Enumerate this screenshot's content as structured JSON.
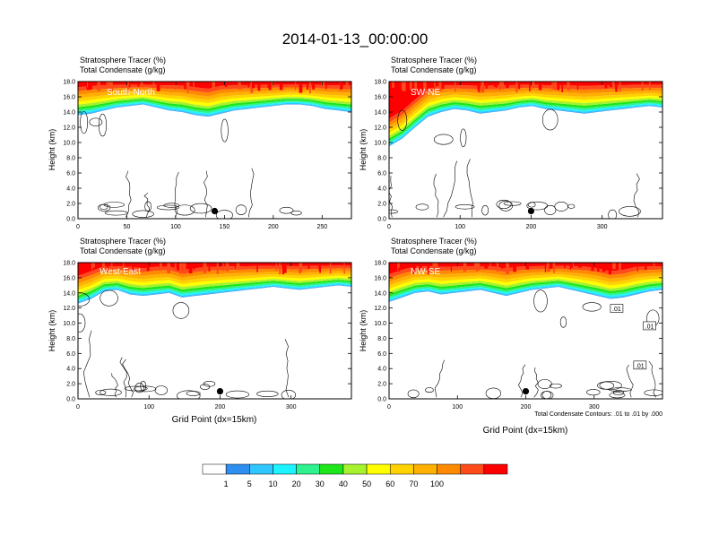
{
  "figure": {
    "title": "2014-01-13_00:00:00",
    "footnote": "Total Condensate Contours: .01 to .01 by .000"
  },
  "colors": {
    "levels": [
      "#ffffff",
      "#2f8ff0",
      "#2fc6ff",
      "#1cf4ff",
      "#2ef28e",
      "#1de61a",
      "#a6f22e",
      "#ffff00",
      "#ffd200",
      "#ffb000",
      "#ff8a00",
      "#ff4a1a",
      "#ff0000"
    ]
  },
  "chart_data": [
    {
      "type": "contour",
      "panel_label": "South-North",
      "header": [
        "Stratosphere Tracer   (%)",
        "Total Condensate   (g/kg)"
      ],
      "ylabel": "Height (km)",
      "xlabel": "",
      "ylim": [
        0,
        18
      ],
      "yticks": [
        "0.0",
        "2.0",
        "4.0",
        "6.0",
        "8.0",
        "10.0",
        "12.0",
        "14.0",
        "16.0",
        "18.0"
      ],
      "xlim": [
        0,
        280
      ],
      "xticks": [
        0,
        50,
        100,
        150,
        200,
        250
      ],
      "tracer_top_km": 18,
      "tracer_base_km": [
        13.6,
        13.8,
        14.2,
        14.6,
        14.8,
        15.0,
        14.6,
        14.2,
        14.0,
        13.6,
        13.4,
        13.8,
        14.2,
        14.4,
        14.6,
        14.8,
        15.0,
        15.0,
        14.8,
        14.4,
        14.2,
        14.0
      ],
      "marker": {
        "x": 140,
        "y": 1.0
      },
      "contour_labels": []
    },
    {
      "type": "contour",
      "panel_label": "SW-NE",
      "header": [
        "Stratosphere Tracer   (%)",
        "Total Condensate   (g/kg)"
      ],
      "ylabel": "Height (km)",
      "xlabel": "",
      "ylim": [
        0,
        18
      ],
      "yticks": [
        "0.0",
        "2.0",
        "4.0",
        "6.0",
        "8.0",
        "10.0",
        "12.0",
        "14.0",
        "16.0",
        "18.0"
      ],
      "xlim": [
        0,
        385
      ],
      "xticks": [
        0,
        100,
        200,
        300
      ],
      "tracer_top_km": 18,
      "tracer_base_km": [
        9.5,
        10.5,
        12.0,
        13.4,
        14.0,
        14.4,
        14.2,
        13.8,
        14.0,
        14.2,
        14.6,
        14.8,
        14.4,
        14.2,
        14.0,
        13.8,
        14.0,
        14.2,
        14.4,
        14.6,
        14.8,
        14.6
      ],
      "marker": {
        "x": 200,
        "y": 1.0
      },
      "contour_labels": []
    },
    {
      "type": "contour",
      "panel_label": "West-East",
      "header": [
        "Stratosphere Tracer   (%)",
        "Total Condensate   (g/kg)"
      ],
      "ylabel": "Height (km)",
      "xlabel": "Grid Point  (dx=15km)",
      "ylim": [
        0,
        18
      ],
      "yticks": [
        "0.0",
        "2.0",
        "4.0",
        "6.0",
        "8.0",
        "10.0",
        "12.0",
        "14.0",
        "16.0",
        "18.0"
      ],
      "xlim": [
        0,
        385
      ],
      "xticks": [
        0,
        100,
        200,
        300
      ],
      "tracer_top_km": 18,
      "tracer_base_km": [
        12.6,
        13.2,
        14.2,
        14.4,
        13.8,
        13.6,
        13.8,
        14.0,
        13.4,
        13.6,
        13.8,
        14.0,
        14.2,
        14.4,
        14.6,
        14.8,
        14.6,
        14.4,
        14.6,
        14.8,
        15.0,
        14.8
      ],
      "marker": {
        "x": 200,
        "y": 1.0
      },
      "contour_labels": []
    },
    {
      "type": "contour",
      "panel_label": "NW-SE",
      "header": [
        "Stratosphere Tracer   (%)",
        "Total Condensate   (g/kg)"
      ],
      "ylabel": "Height (km)",
      "xlabel": "Grid Point  (dx=15km)",
      "ylim": [
        0,
        18
      ],
      "yticks": [
        "0.0",
        "2.0",
        "4.0",
        "6.0",
        "8.0",
        "10.0",
        "12.0",
        "14.0",
        "16.0",
        "18.0"
      ],
      "xlim": [
        0,
        400
      ],
      "xticks": [
        0,
        100,
        200,
        300
      ],
      "tracer_top_km": 18,
      "tracer_base_km": [
        12.8,
        13.4,
        14.0,
        14.2,
        13.8,
        14.0,
        14.2,
        14.4,
        14.0,
        13.6,
        14.0,
        14.4,
        14.6,
        14.8,
        14.4,
        14.0,
        13.6,
        13.2,
        13.4,
        13.8,
        14.2,
        14.4
      ],
      "marker": {
        "x": 200,
        "y": 1.0
      },
      "contour_labels": [
        {
          "text": ".01",
          "x": 333,
          "y": 11.9
        },
        {
          "text": ".01",
          "x": 381,
          "y": 9.6
        },
        {
          "text": ".01",
          "x": 367,
          "y": 4.4
        }
      ]
    }
  ],
  "colorbar": {
    "labels": [
      "1",
      "5",
      "10",
      "20",
      "30",
      "40",
      "50",
      "60",
      "70",
      "100"
    ]
  }
}
